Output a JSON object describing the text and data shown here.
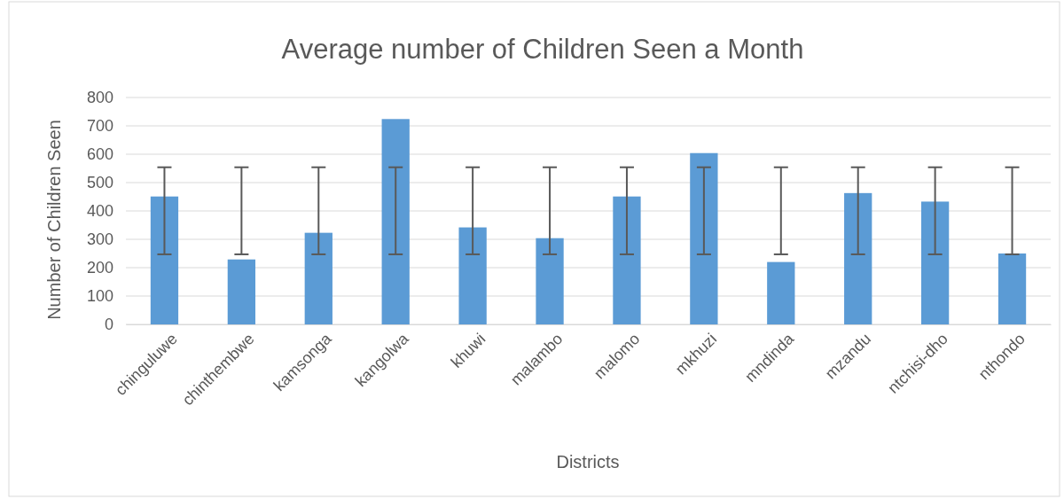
{
  "chart_data": {
    "type": "bar",
    "title": "Average number of Children Seen a Month",
    "xlabel": "Districts",
    "ylabel": "Number of Children Seen",
    "categories": [
      "chinguluwe",
      "chinthembwe",
      "kamsonga",
      "kangolwa",
      "khuwi",
      "malambo",
      "malomo",
      "mkhuzi",
      "mndinda",
      "mzandu",
      "ntchisi-dho",
      "nthondo"
    ],
    "values": [
      451,
      229,
      323,
      724,
      342,
      304,
      451,
      604,
      220,
      463,
      433,
      250
    ],
    "errors": [
      [
        247,
        554
      ],
      [
        247,
        554
      ],
      [
        247,
        554
      ],
      [
        247,
        554
      ],
      [
        247,
        554
      ],
      [
        247,
        554
      ],
      [
        247,
        554
      ],
      [
        247,
        554
      ],
      [
        247,
        554
      ],
      [
        247,
        554
      ],
      [
        247,
        554
      ],
      [
        247,
        554
      ]
    ],
    "color": "#5b9bd5",
    "ylim": [
      0,
      800
    ],
    "yticks": [
      0,
      100,
      200,
      300,
      400,
      500,
      600,
      700,
      800
    ],
    "grid": "y",
    "legend": false
  }
}
